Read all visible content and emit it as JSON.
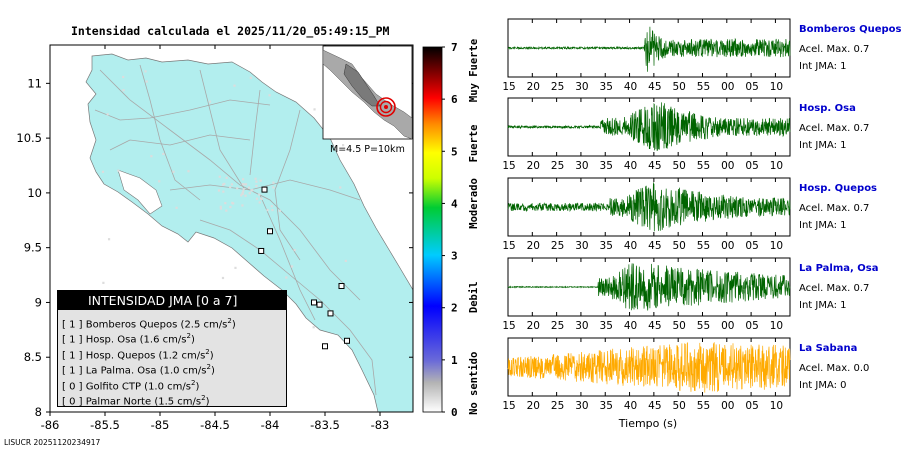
{
  "header": {
    "title": "Intensidad calculada el 2025/11/20_05:49:15_PM"
  },
  "footer": {
    "id": "LISUCR 20251120234917"
  },
  "map": {
    "lon_ticks": [
      "-86",
      "-85.5",
      "-85",
      "-84.5",
      "-84",
      "-83.5",
      "-83"
    ],
    "lat_ticks": [
      "8",
      "8.5",
      "9",
      "9.5",
      "10",
      "10.5",
      "11"
    ],
    "lon_range": [
      -86,
      -82.7
    ],
    "lat_range": [
      8,
      11.35
    ],
    "land_color": "#b2eeee",
    "inset_caption": "M=4.5 P=10km"
  },
  "colorbar": {
    "ticks": [
      "0",
      "1",
      "2",
      "3",
      "4",
      "5",
      "6",
      "7"
    ],
    "range": [
      0,
      7
    ],
    "labels": [
      {
        "text": "No sentido",
        "value": 0.55
      },
      {
        "text": "Debil",
        "value": 2.2
      },
      {
        "text": "Moderado",
        "value": 4
      },
      {
        "text": "Fuerte",
        "value": 5.15
      },
      {
        "text": "Muy Fuerte",
        "value": 6.55
      }
    ]
  },
  "legend": {
    "title": "INTENSIDAD JMA [0 a 7]",
    "items": [
      {
        "level": "[ 1 ]",
        "name": "Bomberos Quepos",
        "value": "(2.5 cm/s",
        "unit_sup": "2",
        "close": ")"
      },
      {
        "level": "[ 1 ]",
        "name": "Hosp. Osa",
        "value": "(1.6 cm/s",
        "unit_sup": "2",
        "close": ")"
      },
      {
        "level": "[ 1 ]",
        "name": "Hosp. Quepos",
        "value": "(1.2 cm/s",
        "unit_sup": "2",
        "close": ")"
      },
      {
        "level": "[ 1 ]",
        "name": "La Palma. Osa",
        "value": "(1.0 cm/s",
        "unit_sup": "2",
        "close": ")"
      },
      {
        "level": "[ 0 ]",
        "name": "Golfito CTP",
        "value": "(1.0 cm/s",
        "unit_sup": "2",
        "close": ")"
      },
      {
        "level": "[ 0 ]",
        "name": "Palmar Norte",
        "value": "(1.5 cm/s",
        "unit_sup": "2",
        "close": ")"
      }
    ]
  },
  "chart_data": [
    {
      "type": "scatter",
      "title": "Intensidad calculada el 2025/11/20_05:49:15_PM",
      "xlabel": "",
      "ylabel": "",
      "xlim": [
        -86,
        -82.7
      ],
      "ylim": [
        8,
        11.35
      ],
      "series": [
        {
          "name": "",
          "points": [
            {
              "x": -84.05,
              "y": 10.03
            },
            {
              "x": -84.08,
              "y": 9.47
            },
            {
              "x": -84.0,
              "y": 9.65
            },
            {
              "x": -83.35,
              "y": 9.15
            },
            {
              "x": -83.6,
              "y": 9.0
            },
            {
              "x": -83.55,
              "y": 8.98
            },
            {
              "x": -83.45,
              "y": 8.9
            },
            {
              "x": -83.5,
              "y": 8.6
            },
            {
              "x": -83.3,
              "y": 8.65
            }
          ]
        }
      ]
    },
    {
      "type": "line",
      "title": "",
      "xlabel": "Tiempo (s)",
      "ylabel": "",
      "xlim": [
        15,
        73
      ],
      "x_tick_labels": [
        "15",
        "20",
        "25",
        "30",
        "35",
        "40",
        "45",
        "50",
        "55",
        "00",
        "05",
        "10"
      ],
      "series": [
        {
          "name": "Bomberos Quepos",
          "color": "#006400",
          "onset": 43,
          "peak_at": 43.5,
          "noise": 0.04,
          "decay": 4,
          "info": {
            "accel": "Acel. Max. 0.7",
            "jma": "Int JMA: 1"
          }
        },
        {
          "name": "Hosp. Osa",
          "color": "#006400",
          "onset": 34,
          "peak_at": 46,
          "noise": 0.05,
          "decay": 12,
          "info": {
            "accel": "Acel. Max. 0.7",
            "jma": "Int JMA: 1"
          }
        },
        {
          "name": "Hosp. Quepos",
          "color": "#006400",
          "onset": 36,
          "peak_at": 45,
          "noise": 0.15,
          "decay": 15,
          "info": {
            "accel": "Acel. Max. 0.7",
            "jma": "Int JMA: 1"
          }
        },
        {
          "name": "La Palma, Osa",
          "color": "#006400",
          "onset": 33.5,
          "peak_at": 40,
          "noise": 0.02,
          "decay": 40,
          "info": {
            "accel": "Acel. Max. 0.7",
            "jma": "Int JMA: 1"
          }
        },
        {
          "name": "La Sabana",
          "color": "#ffaa00",
          "onset": 15,
          "peak_at": 55,
          "noise": 0.35,
          "decay": 60,
          "info": {
            "accel": "Acel. Max. 0.0",
            "jma": "Int JMA: 0"
          }
        }
      ]
    }
  ]
}
